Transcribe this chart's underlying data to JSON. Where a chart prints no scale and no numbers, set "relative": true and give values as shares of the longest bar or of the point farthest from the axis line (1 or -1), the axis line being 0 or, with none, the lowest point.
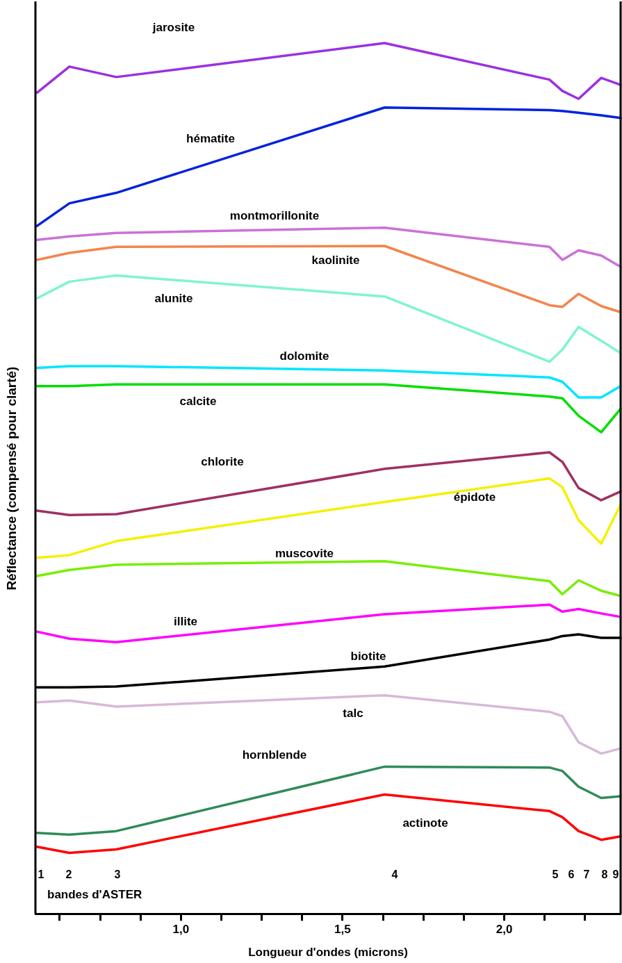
{
  "chart_data": {
    "type": "line",
    "relative": true,
    "xlabel": "Longueur d'ondes (microns)",
    "ylabel": "Réflectance (compensé pour clarté)",
    "x": [
      0.555,
      0.655,
      0.8,
      1.63,
      2.14,
      2.18,
      2.23,
      2.3,
      2.36
    ],
    "xlim": [
      0.55,
      2.36
    ],
    "xticks": [
      {
        "value": 0.625,
        "label": null
      },
      {
        "value": 0.75,
        "label": null
      },
      {
        "value": 0.875,
        "label": null
      },
      {
        "value": 1,
        "label": "1,0"
      },
      {
        "value": 1.125,
        "label": null
      },
      {
        "value": 1.25,
        "label": null
      },
      {
        "value": 1.375,
        "label": null
      },
      {
        "value": 1.5,
        "label": "1,5"
      },
      {
        "value": 1.625,
        "label": null
      },
      {
        "value": 1.75,
        "label": null
      },
      {
        "value": 1.875,
        "label": null
      },
      {
        "value": 2,
        "label": "2,0"
      },
      {
        "value": 2.125,
        "label": null
      },
      {
        "value": 2.25,
        "label": null
      }
    ],
    "grid": false,
    "legend": false,
    "marker": "none",
    "line_style": "solid",
    "series": [
      {
        "name": "jarosite",
        "color": "#9b30e0",
        "values": [
          0.943,
          0.973,
          0.961,
          1.0,
          0.958,
          0.945,
          0.936,
          0.96,
          0.952
        ]
      },
      {
        "name": "hématite",
        "color": "#0022dd",
        "values": [
          0.79,
          0.816,
          0.828,
          0.926,
          0.923,
          0.922,
          0.92,
          0.917,
          0.914
        ]
      },
      {
        "name": "montmorillonite",
        "color": "#cc70d8",
        "values": [
          0.774,
          0.778,
          0.782,
          0.788,
          0.766,
          0.751,
          0.762,
          0.756,
          0.743
        ]
      },
      {
        "name": "kaolinite",
        "color": "#f4844c",
        "values": [
          0.751,
          0.759,
          0.766,
          0.767,
          0.699,
          0.697,
          0.712,
          0.698,
          0.691
        ]
      },
      {
        "name": "alunite",
        "color": "#7ff5cc",
        "values": [
          0.707,
          0.726,
          0.733,
          0.709,
          0.634,
          0.648,
          0.674,
          0.658,
          0.644
        ]
      },
      {
        "name": "dolomite",
        "color": "#00e5ff",
        "values": [
          0.627,
          0.629,
          0.629,
          0.624,
          0.616,
          0.611,
          0.593,
          0.593,
          0.606
        ]
      },
      {
        "name": "calcite",
        "color": "#00dd00",
        "values": [
          0.606,
          0.606,
          0.608,
          0.608,
          0.594,
          0.592,
          0.572,
          0.553,
          0.58
        ]
      },
      {
        "name": "chlorite",
        "color": "#a03060",
        "values": [
          0.463,
          0.458,
          0.459,
          0.511,
          0.53,
          0.519,
          0.489,
          0.475,
          0.485
        ]
      },
      {
        "name": "épidote",
        "color": "#f5f000",
        "values": [
          0.409,
          0.412,
          0.428,
          0.473,
          0.5,
          0.49,
          0.452,
          0.425,
          0.47
        ]
      },
      {
        "name": "muscovite",
        "color": "#77ee00",
        "values": [
          0.388,
          0.395,
          0.401,
          0.405,
          0.382,
          0.367,
          0.383,
          0.371,
          0.365
        ]
      },
      {
        "name": "illite",
        "color": "#ff00ff",
        "values": [
          0.324,
          0.316,
          0.312,
          0.344,
          0.355,
          0.347,
          0.35,
          0.345,
          0.341
        ]
      },
      {
        "name": "biotite",
        "color": "#000000",
        "values": [
          0.26,
          0.26,
          0.261,
          0.284,
          0.315,
          0.319,
          0.321,
          0.317,
          0.317
        ]
      },
      {
        "name": "talc",
        "color": "#d8b8d8",
        "values": [
          0.243,
          0.245,
          0.238,
          0.251,
          0.232,
          0.227,
          0.197,
          0.184,
          0.19
        ]
      },
      {
        "name": "hornblende",
        "color": "#2e8b57",
        "values": [
          0.093,
          0.091,
          0.095,
          0.169,
          0.168,
          0.164,
          0.146,
          0.133,
          0.135
        ]
      },
      {
        "name": "actinote",
        "color": "#ff0000",
        "values": [
          0.077,
          0.07,
          0.074,
          0.137,
          0.118,
          0.111,
          0.095,
          0.085,
          0.089
        ]
      }
    ],
    "annotations": [
      "1",
      "2",
      "3",
      "4",
      "5",
      "6",
      "7",
      "8",
      "9",
      "bandes d'ASTER"
    ]
  }
}
